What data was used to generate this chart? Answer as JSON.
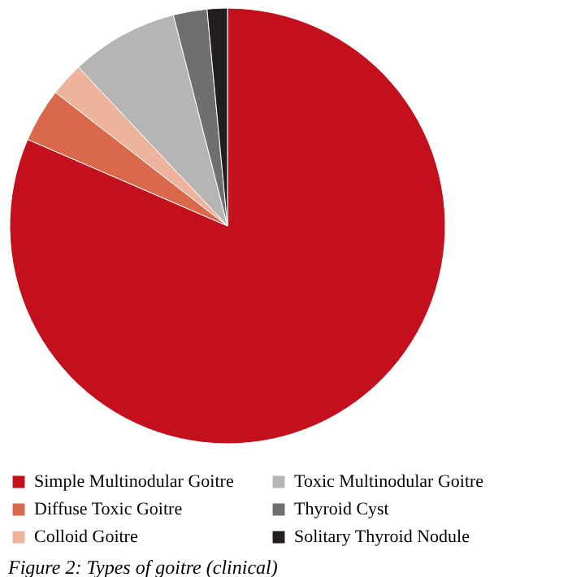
{
  "chart_data": {
    "type": "pie",
    "title": "Figure 2: Types of goitre (clinical)",
    "categories": [
      "Simple Multinodular Goitre",
      "Diffuse Toxic Goitre",
      "Colloid Goitre",
      "Toxic Multinodular Goitre",
      "Thyroid Cyst",
      "Solitary Thyroid Nodule"
    ],
    "values": [
      81.5,
      4,
      2.5,
      8,
      2.5,
      1.5
    ],
    "colors": [
      "#c3101c",
      "#d9694a",
      "#eeb39c",
      "#b5b5b5",
      "#6f6f6f",
      "#231f20"
    ],
    "legend": "bottom"
  }
}
